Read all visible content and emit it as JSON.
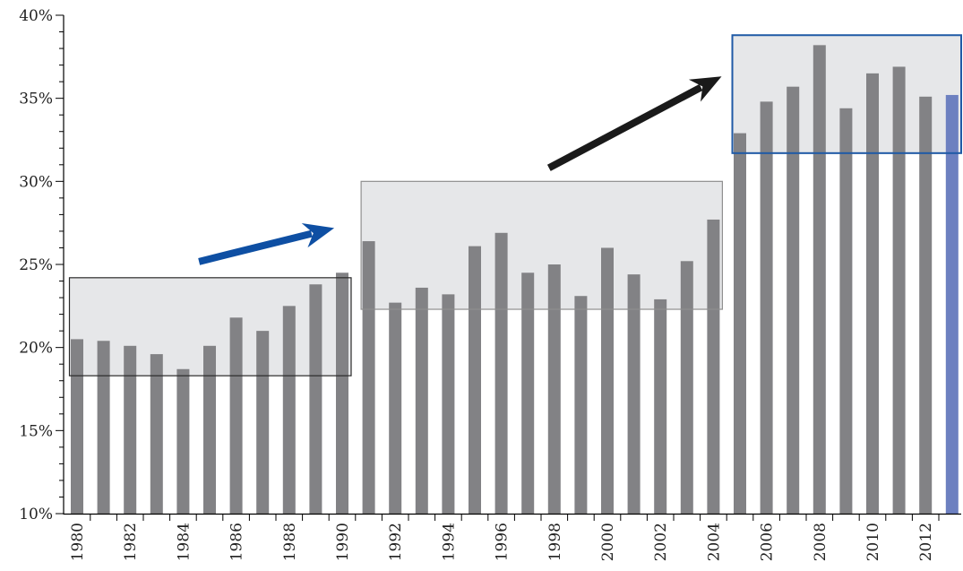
{
  "chart_data": {
    "type": "bar",
    "title": "",
    "xlabel": "",
    "ylabel": "",
    "ylim": [
      10,
      40
    ],
    "yticks": [
      10,
      15,
      20,
      25,
      30,
      35,
      40
    ],
    "ytick_labels": [
      "10%",
      "15%",
      "20%",
      "25%",
      "30%",
      "35%",
      "40%"
    ],
    "categories": [
      "1980",
      "1981",
      "1982",
      "1983",
      "1984",
      "1985",
      "1986",
      "1987",
      "1988",
      "1989",
      "1990",
      "1991",
      "1992",
      "1993",
      "1994",
      "1995",
      "1996",
      "1997",
      "1998",
      "1999",
      "2000",
      "2001",
      "2002",
      "2003",
      "2004",
      "2005",
      "2006",
      "2007",
      "2008",
      "2009",
      "2010",
      "2011",
      "2012",
      "2013"
    ],
    "xtick_labels": [
      "1980",
      "1982",
      "1984",
      "1986",
      "1988",
      "1990",
      "1992",
      "1994",
      "1996",
      "1998",
      "2000",
      "2002",
      "2004",
      "2006",
      "2008",
      "2010",
      "2012"
    ],
    "values": [
      20.5,
      20.4,
      20.1,
      19.6,
      18.7,
      20.1,
      21.8,
      21.0,
      22.5,
      23.8,
      24.5,
      26.4,
      22.7,
      23.6,
      23.2,
      26.1,
      26.9,
      24.5,
      25.0,
      23.1,
      26.0,
      24.4,
      22.9,
      25.2,
      27.7,
      32.9,
      34.8,
      35.7,
      38.2,
      34.4,
      36.5,
      36.9,
      35.1,
      35.2
    ],
    "highlighted_category": "2013",
    "grid": false,
    "annotations": [
      {
        "type": "box",
        "from": "1980",
        "to": "1990",
        "ymin": 18.3,
        "ymax": 24.2
      },
      {
        "type": "box",
        "from": "1991",
        "to": "2004",
        "ymin": 22.3,
        "ymax": 30.0
      },
      {
        "type": "box",
        "from": "2005",
        "to": "2013",
        "ymin": 31.7,
        "ymax": 38.8
      },
      {
        "type": "arrow",
        "from_box": 0,
        "to_box": 1
      },
      {
        "type": "arrow",
        "from_box": 1,
        "to_box": 2
      }
    ]
  },
  "colors": {
    "bar": "#828285",
    "bar_highlight": "#6d80c0",
    "box_fill": "#e6e7e9",
    "box1_border": "#2a2a2a",
    "box2_border": "#8f8f8f",
    "box3_border": "#1f5aa6",
    "arrow1": "#0e4fa3",
    "arrow2": "#1a1a1a",
    "axis": "#000000"
  }
}
